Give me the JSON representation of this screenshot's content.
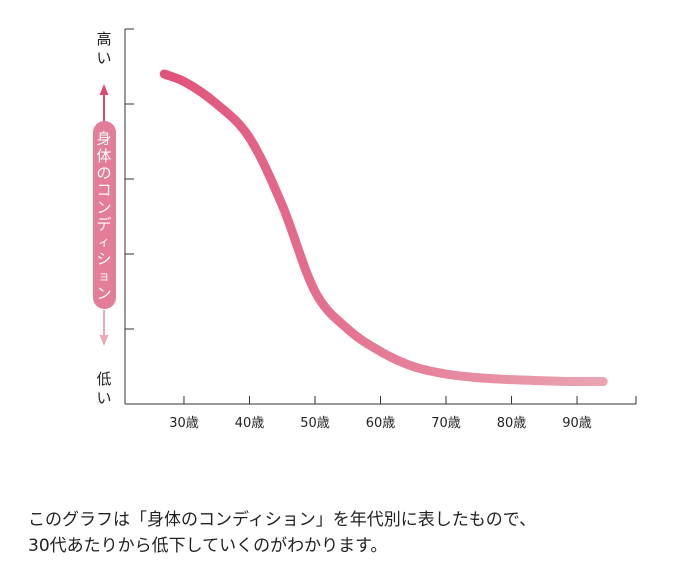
{
  "chart_data": {
    "type": "line",
    "ylabel": "身体のコンディション",
    "y_top_label": "高い",
    "y_bottom_label": "低い",
    "categories": [
      "30歳",
      "40歳",
      "50歳",
      "60歳",
      "70歳",
      "80歳",
      "90歳"
    ],
    "x": [
      27,
      30,
      35,
      40,
      45,
      50,
      55,
      60,
      65,
      70,
      75,
      80,
      85,
      90,
      94
    ],
    "values": [
      88,
      86,
      80,
      71,
      53,
      30,
      20,
      14,
      10,
      8,
      7,
      6.5,
      6.2,
      6.0,
      6.0
    ],
    "xlim": [
      21,
      99
    ],
    "ylim": [
      0,
      100
    ],
    "y_ticks": [
      20,
      40,
      60,
      80
    ],
    "grid": false,
    "line_color_start": "#e0527a",
    "line_color_end": "#eaa4b2",
    "label_box_color": "#e37d98",
    "arrow_up_color": "#d94a6f",
    "arrow_down_color": "#eeaab8"
  },
  "caption": {
    "line1": "このグラフは「身体のコンディション」を年代別に表したもので、",
    "line2": "30代あたりから低下していくのがわかります。"
  }
}
